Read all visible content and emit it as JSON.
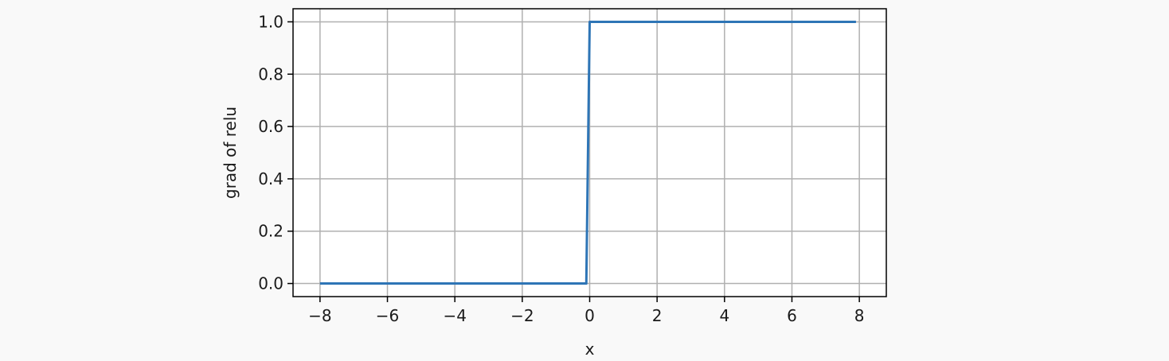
{
  "chart_data": {
    "type": "line",
    "title": "",
    "xlabel": "x",
    "ylabel": "grad of relu",
    "xlim": [
      -8.8,
      8.8
    ],
    "ylim": [
      -0.05,
      1.05
    ],
    "xticks": [
      -8,
      -6,
      -4,
      -2,
      0,
      2,
      4,
      6,
      8
    ],
    "xtick_labels": [
      "−8",
      "−6",
      "−4",
      "−2",
      "0",
      "2",
      "4",
      "6",
      "8"
    ],
    "yticks": [
      0.0,
      0.2,
      0.4,
      0.6,
      0.8,
      1.0
    ],
    "ytick_labels": [
      "0.0",
      "0.2",
      "0.4",
      "0.6",
      "0.8",
      "1.0"
    ],
    "grid": true,
    "series": [
      {
        "x": [
          -8.0,
          -0.1,
          0.0,
          7.9
        ],
        "y": [
          0.0,
          0.0,
          1.0,
          1.0
        ]
      }
    ],
    "colors": {
      "line": "#2e75b6",
      "grid": "#b0b0b0",
      "axes": "#000000",
      "plot_bg": "#ffffff"
    }
  }
}
